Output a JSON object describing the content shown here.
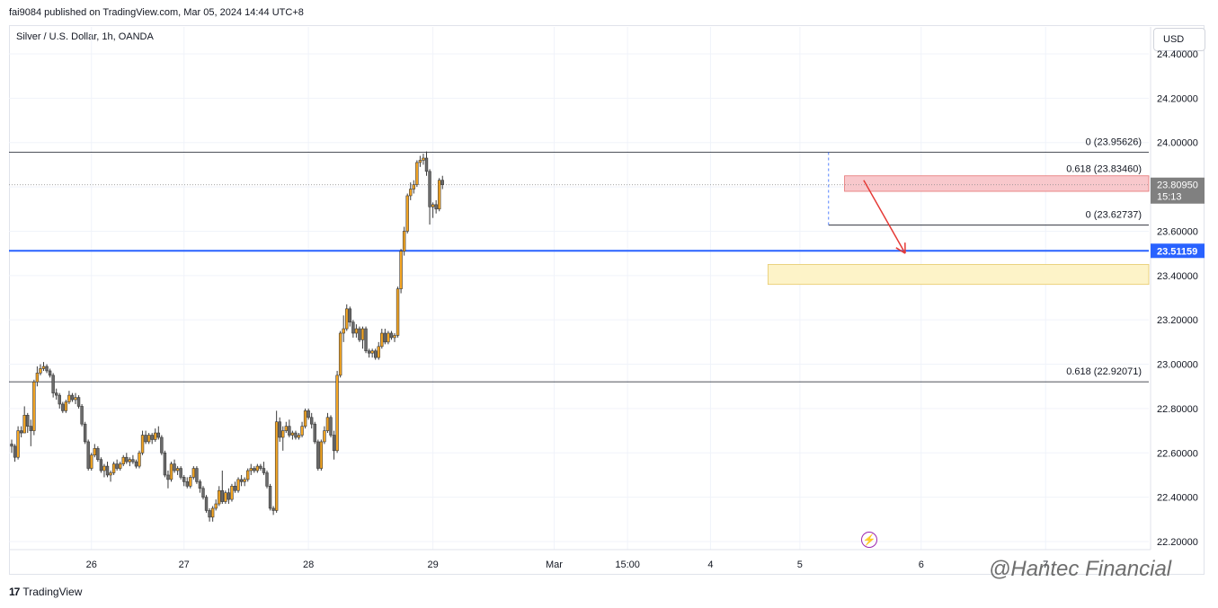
{
  "header": {
    "publisher_note": "fai9084 published on TradingView.com, Mar 05, 2024 14:44 UTC+8",
    "symbol": "Silver / U.S. Dollar, 1h, OANDA",
    "currency_button": "USD"
  },
  "footer": {
    "brand": "TradingView",
    "watermark": "@Hantec Financial"
  },
  "colors": {
    "bull": "#f5a623",
    "bear": "#6b6b6b",
    "level_line": "#131722",
    "key_level": "#2962ff",
    "red_zone": "#f8c8cc",
    "yellow_zone": "#fdf3c8",
    "arrow": "#e53935",
    "price_tag": "#808080"
  },
  "chart_data": {
    "type": "candlestick",
    "y_range": [
      22.16,
      24.44
    ],
    "y_ticks": [
      "24.40000",
      "24.20000",
      "24.00000",
      "23.80000",
      "23.60000",
      "23.40000",
      "23.20000",
      "23.00000",
      "22.80000",
      "22.60000",
      "22.40000",
      "22.20000"
    ],
    "y_tick_values": [
      24.4,
      24.2,
      24.0,
      23.8,
      23.6,
      23.4,
      23.2,
      23.0,
      22.8,
      22.6,
      22.4,
      22.2
    ],
    "x_ticks": [
      {
        "label": "26",
        "bar": 25
      },
      {
        "label": "27",
        "bar": 54
      },
      {
        "label": "28",
        "bar": 93
      },
      {
        "label": "29",
        "bar": 132
      },
      {
        "label": "Mar",
        "bar": 170
      },
      {
        "label": "15:00",
        "bar": 193
      },
      {
        "label": "4",
        "bar": 219
      },
      {
        "label": "5",
        "bar": 247
      },
      {
        "label": "6",
        "bar": 285
      },
      {
        "label": "7",
        "bar": 324
      }
    ],
    "levels": [
      {
        "label": "0 (23.95626)",
        "value": 23.95626
      },
      {
        "label": "0.618 (23.83460)",
        "value": 23.8346
      },
      {
        "label": "0 (23.62737)",
        "value": 23.62737
      },
      {
        "label": "0.618 (22.92071)",
        "value": 22.92071
      }
    ],
    "key_level": {
      "value": 23.51159,
      "label": "23.51159"
    },
    "last_price": {
      "value": 23.8095,
      "label": "23.80950",
      "countdown": "15:13"
    },
    "zones": [
      {
        "name": "resistance-zone",
        "from": 23.78,
        "to": 23.85
      },
      {
        "name": "support-zone",
        "from": 23.36,
        "to": 23.45
      }
    ],
    "projection": {
      "from": {
        "bar": 267,
        "value": 23.83
      },
      "to": {
        "bar": 280,
        "value": 23.5
      }
    },
    "candles": [
      [
        22.64,
        22.66,
        22.6,
        22.63
      ],
      [
        22.63,
        22.64,
        22.56,
        22.58
      ],
      [
        22.58,
        22.72,
        22.57,
        22.7
      ],
      [
        22.7,
        22.72,
        22.67,
        22.69
      ],
      [
        22.69,
        22.81,
        22.69,
        22.77
      ],
      [
        22.77,
        22.78,
        22.69,
        22.72
      ],
      [
        22.72,
        22.75,
        22.63,
        22.7
      ],
      [
        22.7,
        22.93,
        22.68,
        22.92
      ],
      [
        22.92,
        22.99,
        22.9,
        22.96
      ],
      [
        22.96,
        23.0,
        22.95,
        22.98
      ],
      [
        22.98,
        23.01,
        22.97,
        22.99
      ],
      [
        22.99,
        23.0,
        22.96,
        22.97
      ],
      [
        22.97,
        22.98,
        22.94,
        22.95
      ],
      [
        22.95,
        22.96,
        22.85,
        22.87
      ],
      [
        22.87,
        22.89,
        22.84,
        22.86
      ],
      [
        22.86,
        22.87,
        22.8,
        22.82
      ],
      [
        22.82,
        22.83,
        22.78,
        22.79
      ],
      [
        22.79,
        22.84,
        22.78,
        22.83
      ],
      [
        22.83,
        22.88,
        22.82,
        22.86
      ],
      [
        22.86,
        22.87,
        22.83,
        22.84
      ],
      [
        22.84,
        22.87,
        22.82,
        22.85
      ],
      [
        22.85,
        22.86,
        22.8,
        22.81
      ],
      [
        22.81,
        22.82,
        22.72,
        22.73
      ],
      [
        22.73,
        22.74,
        22.64,
        22.65
      ],
      [
        22.65,
        22.66,
        22.52,
        22.53
      ],
      [
        22.53,
        22.6,
        22.52,
        22.59
      ],
      [
        22.59,
        22.64,
        22.58,
        22.62
      ],
      [
        22.62,
        22.63,
        22.56,
        22.57
      ],
      [
        22.57,
        22.58,
        22.51,
        22.52
      ],
      [
        22.52,
        22.55,
        22.49,
        22.54
      ],
      [
        22.54,
        22.56,
        22.49,
        22.5
      ],
      [
        22.5,
        22.52,
        22.47,
        22.51
      ],
      [
        22.51,
        22.56,
        22.5,
        22.55
      ],
      [
        22.55,
        22.57,
        22.52,
        22.53
      ],
      [
        22.53,
        22.56,
        22.52,
        22.55
      ],
      [
        22.55,
        22.59,
        22.54,
        22.58
      ],
      [
        22.58,
        22.6,
        22.55,
        22.56
      ],
      [
        22.56,
        22.58,
        22.54,
        22.57
      ],
      [
        22.57,
        22.59,
        22.55,
        22.56
      ],
      [
        22.56,
        22.57,
        22.53,
        22.54
      ],
      [
        22.54,
        22.61,
        22.53,
        22.6
      ],
      [
        22.6,
        22.7,
        22.59,
        22.68
      ],
      [
        22.68,
        22.7,
        22.64,
        22.65
      ],
      [
        22.65,
        22.69,
        22.64,
        22.68
      ],
      [
        22.68,
        22.69,
        22.64,
        22.66
      ],
      [
        22.66,
        22.71,
        22.65,
        22.69
      ],
      [
        22.69,
        22.72,
        22.66,
        22.67
      ],
      [
        22.67,
        22.68,
        22.59,
        22.6
      ],
      [
        22.6,
        22.61,
        22.49,
        22.5
      ],
      [
        22.5,
        22.52,
        22.44,
        22.48
      ],
      [
        22.48,
        22.56,
        22.47,
        22.55
      ],
      [
        22.55,
        22.57,
        22.51,
        22.52
      ],
      [
        22.52,
        22.54,
        22.5,
        22.53
      ],
      [
        22.53,
        22.54,
        22.48,
        22.49
      ],
      [
        22.49,
        22.5,
        22.45,
        22.47
      ],
      [
        22.47,
        22.49,
        22.44,
        22.45
      ],
      [
        22.45,
        22.5,
        22.44,
        22.49
      ],
      [
        22.49,
        22.54,
        22.48,
        22.53
      ],
      [
        22.53,
        22.54,
        22.46,
        22.47
      ],
      [
        22.47,
        22.48,
        22.42,
        22.44
      ],
      [
        22.44,
        22.45,
        22.39,
        22.4
      ],
      [
        22.4,
        22.41,
        22.33,
        22.34
      ],
      [
        22.34,
        22.35,
        22.29,
        22.31
      ],
      [
        22.31,
        22.36,
        22.29,
        22.35
      ],
      [
        22.35,
        22.39,
        22.34,
        22.37
      ],
      [
        22.37,
        22.45,
        22.36,
        22.43
      ],
      [
        22.43,
        22.52,
        22.37,
        22.38
      ],
      [
        22.38,
        22.43,
        22.37,
        22.42
      ],
      [
        22.42,
        22.44,
        22.37,
        22.39
      ],
      [
        22.39,
        22.46,
        22.38,
        22.45
      ],
      [
        22.45,
        22.47,
        22.42,
        22.43
      ],
      [
        22.43,
        22.49,
        22.42,
        22.48
      ],
      [
        22.48,
        22.5,
        22.45,
        22.47
      ],
      [
        22.47,
        22.49,
        22.45,
        22.48
      ],
      [
        22.48,
        22.53,
        22.47,
        22.52
      ],
      [
        22.52,
        22.55,
        22.5,
        22.53
      ],
      [
        22.53,
        22.54,
        22.51,
        22.52
      ],
      [
        22.52,
        22.55,
        22.51,
        22.54
      ],
      [
        22.54,
        22.55,
        22.52,
        22.53
      ],
      [
        22.53,
        22.56,
        22.5,
        22.51
      ],
      [
        22.51,
        22.52,
        22.44,
        22.45
      ],
      [
        22.45,
        22.46,
        22.34,
        22.35
      ],
      [
        22.35,
        22.36,
        22.32,
        22.34
      ],
      [
        22.34,
        22.79,
        22.33,
        22.74
      ],
      [
        22.74,
        22.76,
        22.65,
        22.67
      ],
      [
        22.67,
        22.72,
        22.61,
        22.7
      ],
      [
        22.7,
        22.74,
        22.69,
        22.72
      ],
      [
        22.72,
        22.75,
        22.67,
        22.68
      ],
      [
        22.68,
        22.7,
        22.66,
        22.69
      ],
      [
        22.69,
        22.7,
        22.66,
        22.67
      ],
      [
        22.67,
        22.69,
        22.66,
        22.68
      ],
      [
        22.68,
        22.74,
        22.67,
        22.72
      ],
      [
        22.72,
        22.8,
        22.71,
        22.79
      ],
      [
        22.79,
        22.8,
        22.75,
        22.76
      ],
      [
        22.76,
        22.78,
        22.71,
        22.73
      ],
      [
        22.73,
        22.74,
        22.64,
        22.65
      ],
      [
        22.65,
        22.66,
        22.52,
        22.53
      ],
      [
        22.53,
        22.66,
        22.52,
        22.65
      ],
      [
        22.65,
        22.72,
        22.64,
        22.7
      ],
      [
        22.7,
        22.78,
        22.69,
        22.76
      ],
      [
        22.76,
        22.77,
        22.67,
        22.68
      ],
      [
        22.68,
        22.7,
        22.57,
        22.61
      ],
      [
        22.61,
        22.97,
        22.6,
        22.95
      ],
      [
        22.95,
        23.15,
        22.94,
        23.14
      ],
      [
        23.14,
        23.22,
        23.1,
        23.16
      ],
      [
        23.16,
        23.27,
        23.15,
        23.25
      ],
      [
        23.25,
        23.26,
        23.17,
        23.19
      ],
      [
        23.19,
        23.2,
        23.12,
        23.14
      ],
      [
        23.14,
        23.18,
        23.12,
        23.16
      ],
      [
        23.16,
        23.17,
        23.1,
        23.11
      ],
      [
        23.11,
        23.17,
        23.07,
        23.16
      ],
      [
        23.16,
        23.17,
        23.05,
        23.06
      ],
      [
        23.06,
        23.07,
        23.03,
        23.05
      ],
      [
        23.05,
        23.07,
        23.03,
        23.06
      ],
      [
        23.06,
        23.07,
        23.02,
        23.03
      ],
      [
        23.03,
        23.1,
        23.02,
        23.08
      ],
      [
        23.08,
        23.16,
        23.07,
        23.14
      ],
      [
        23.14,
        23.16,
        23.09,
        23.1
      ],
      [
        23.1,
        23.15,
        23.09,
        23.14
      ],
      [
        23.14,
        23.15,
        23.11,
        23.12
      ],
      [
        23.12,
        23.14,
        23.1,
        23.13
      ],
      [
        23.13,
        23.35,
        23.12,
        23.34
      ],
      [
        23.34,
        23.52,
        23.32,
        23.51
      ],
      [
        23.51,
        23.62,
        23.49,
        23.6
      ],
      [
        23.6,
        23.77,
        23.59,
        23.76
      ],
      [
        23.76,
        23.82,
        23.74,
        23.79
      ],
      [
        23.79,
        23.83,
        23.77,
        23.81
      ],
      [
        23.81,
        23.92,
        23.8,
        23.91
      ],
      [
        23.91,
        23.94,
        23.89,
        23.92
      ],
      [
        23.92,
        23.95,
        23.9,
        23.93
      ],
      [
        23.93,
        23.96,
        23.85,
        23.87
      ],
      [
        23.87,
        23.88,
        23.63,
        23.71
      ],
      [
        23.71,
        23.73,
        23.66,
        23.72
      ],
      [
        23.72,
        23.74,
        23.68,
        23.7
      ],
      [
        23.7,
        23.84,
        23.69,
        23.83
      ],
      [
        23.83,
        23.85,
        23.79,
        23.81
      ]
    ]
  }
}
